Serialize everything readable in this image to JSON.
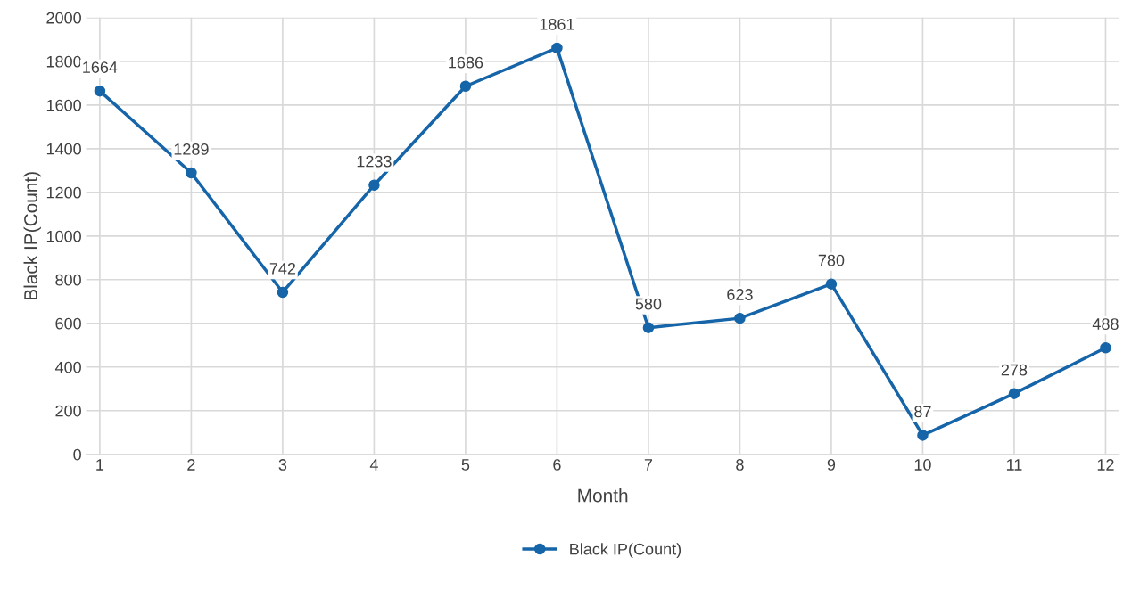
{
  "chart_data": {
    "type": "line",
    "xlabel": "Month",
    "ylabel": "Black IP(Count)",
    "categories": [
      "1",
      "2",
      "3",
      "4",
      "5",
      "6",
      "7",
      "8",
      "9",
      "10",
      "11",
      "12"
    ],
    "series": [
      {
        "name": "Black IP(Count)",
        "color": "#1565a8",
        "values": [
          1664,
          1289,
          742,
          1233,
          1686,
          1861,
          580,
          623,
          780,
          87,
          278,
          488
        ]
      }
    ],
    "ylim": [
      0,
      2000
    ],
    "yticks": [
      0,
      200,
      400,
      600,
      800,
      1000,
      1200,
      1400,
      1600,
      1800,
      2000
    ],
    "grid": true,
    "legend": "bottom",
    "marker": "circle",
    "line_style": "solid",
    "data_labels": true
  }
}
